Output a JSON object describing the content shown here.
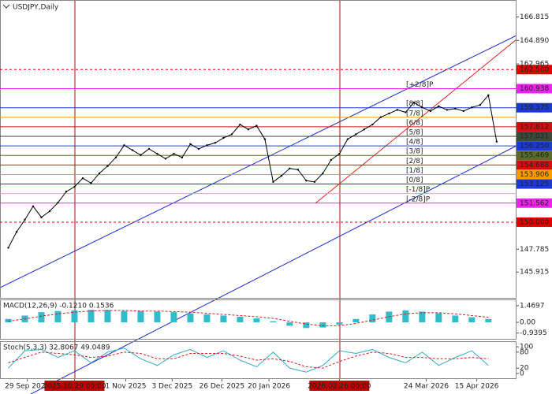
{
  "chart_data": [
    {
      "type": "line",
      "title": "USDJPY,Daily",
      "color": "#000000",
      "x": [
        1,
        2,
        3,
        4,
        5,
        6,
        7,
        8,
        9,
        10,
        11,
        12,
        13,
        14,
        15,
        16,
        17,
        18,
        19,
        20,
        21,
        22,
        23,
        24,
        25,
        26,
        27,
        28,
        29,
        30,
        31,
        32,
        33,
        34,
        35,
        36,
        37,
        38,
        39,
        40,
        41,
        42,
        43,
        44,
        45,
        46,
        47,
        48,
        49,
        50,
        51,
        52,
        53,
        54,
        55,
        56,
        57,
        58,
        59,
        60
      ],
      "values": [
        147.9,
        149.2,
        150.2,
        151.3,
        150.4,
        150.9,
        151.6,
        152.5,
        152.9,
        153.6,
        153.2,
        154.0,
        154.6,
        155.3,
        156.3,
        155.9,
        155.5,
        156.0,
        155.6,
        155.2,
        155.6,
        155.3,
        156.4,
        156.0,
        156.3,
        156.5,
        156.9,
        157.2,
        158.0,
        157.6,
        157.9,
        156.8,
        153.3,
        153.8,
        154.4,
        154.3,
        153.4,
        153.3,
        154.0,
        155.1,
        155.6,
        156.8,
        157.2,
        157.6,
        158.0,
        158.6,
        158.9,
        159.2,
        159.0,
        159.8,
        159.4,
        159.1,
        159.5,
        159.2,
        159.3,
        159.1,
        159.4,
        159.6,
        160.4,
        156.6
      ],
      "xlim": [
        0,
        62.4
      ],
      "ylim": [
        143.8,
        168.2
      ],
      "yticks": [
        166.815,
        {
          "value": 164.89,
          "label": "164.890"
        },
        162.965,
        147.785,
        145.915
      ],
      "levels": [
        {
          "value": 162.5,
          "label": "162.500",
          "color": "#e00000",
          "dashed": true
        },
        {
          "value": 160.938,
          "label": "160.938",
          "murrey": "[+2/8]P",
          "color": "#ee22ee"
        },
        {
          "value": 159.375,
          "label": "159.375",
          "murrey": "[8/8]",
          "color": "#1a3ad0"
        },
        {
          "value": 158.594,
          "murrey": "[7/8]",
          "color": "#ff9900"
        },
        {
          "value": 157.812,
          "label": "157.812",
          "murrey": "[6/8]",
          "color": "#d01010"
        },
        {
          "value": 157.031,
          "label": "157.031",
          "murrey": "[5/8]",
          "color": "#3c4a3c"
        },
        {
          "value": 156.25,
          "label": "156.250",
          "murrey": "[4/8]",
          "color": "#1a3ad0"
        },
        {
          "value": 155.469,
          "label": "155.469",
          "murrey": "[3/8]",
          "color": "#5a6b2a"
        },
        {
          "value": 154.688,
          "label": "154.688",
          "murrey": "[2/8]",
          "color": "#d01010"
        },
        {
          "value": 153.906,
          "label": "153.906",
          "murrey": "[1/8]",
          "color": "#ff9900"
        },
        {
          "value": 153.125,
          "label": "153.125",
          "murrey": "[0/8]",
          "color": "#1a3ad0"
        },
        {
          "value": 152.344,
          "murrey": "[-1/8]P",
          "color": "#f0a0c0"
        },
        {
          "value": 151.562,
          "label": "151.562",
          "murrey": "[-2/8]P",
          "color": "#ee22ee"
        },
        {
          "value": 150,
          "label": "150.000",
          "color": "#e00000",
          "dashed": true
        }
      ],
      "xticks": [
        {
          "value": 3.3,
          "label": "29 Sep 2025"
        },
        {
          "value": 9,
          "label": "2025.10.29 00:00",
          "highlight": true
        },
        {
          "value": 15.2,
          "label": "1 Nov 2025"
        },
        {
          "value": 20.8,
          "label": "3 Dec 2025"
        },
        {
          "value": 26.8,
          "label": "26 Dec 2025"
        },
        {
          "value": 32.5,
          "label": "20 Jan 2026"
        },
        {
          "value": 41,
          "label": "2026.02.26 00:00",
          "highlight": true
        },
        {
          "value": 51.5,
          "label": "24 Mar 2026"
        },
        {
          "value": 57.6,
          "label": "15 Apr 2026"
        }
      ]
    },
    {
      "type": "macd",
      "title": "MACD(12,26,9) -0.1210 0.1536",
      "color": "#33bbcc",
      "signal_color": "#d02020",
      "x": [
        1,
        3,
        5,
        7,
        9,
        11,
        13,
        15,
        17,
        19,
        21,
        23,
        25,
        27,
        29,
        31,
        33,
        35,
        37,
        39,
        41,
        43,
        45,
        47,
        49,
        51,
        53,
        55,
        57,
        59
      ],
      "values": [
        0.3,
        0.6,
        0.9,
        1.0,
        1.05,
        1.1,
        1.1,
        1.0,
        1.0,
        0.95,
        0.9,
        0.8,
        0.7,
        0.6,
        0.5,
        0.35,
        0.1,
        -0.3,
        -0.5,
        -0.45,
        -0.2,
        0.3,
        0.7,
        0.95,
        1.05,
        0.95,
        0.8,
        0.6,
        0.45,
        0.3
      ],
      "signal": [
        0.1,
        0.3,
        0.55,
        0.75,
        0.9,
        1.0,
        1.05,
        1.05,
        1.0,
        1.0,
        0.95,
        0.9,
        0.8,
        0.7,
        0.6,
        0.5,
        0.35,
        0.1,
        -0.15,
        -0.3,
        -0.3,
        -0.1,
        0.2,
        0.5,
        0.75,
        0.85,
        0.85,
        0.75,
        0.6,
        0.45
      ],
      "ylim": [
        -1.45,
        1.95
      ],
      "yticks": [
        1.4697,
        {
          "value": 0,
          "label": "0.00"
        },
        -0.9395
      ]
    },
    {
      "type": "stoch",
      "title": "Stoch(5,3,3) 32.8067 49.0489",
      "color": "#33aacc",
      "signal_color": "#d02020",
      "x": [
        1,
        3,
        5,
        7,
        9,
        11,
        13,
        15,
        17,
        19,
        21,
        23,
        25,
        27,
        29,
        31,
        33,
        35,
        37,
        39,
        41,
        43,
        45,
        47,
        49,
        51,
        53,
        55,
        57,
        59
      ],
      "values": [
        20,
        85,
        90,
        60,
        85,
        40,
        80,
        95,
        55,
        30,
        70,
        90,
        60,
        85,
        50,
        25,
        80,
        20,
        5,
        30,
        85,
        75,
        90,
        60,
        40,
        80,
        30,
        60,
        85,
        30
      ],
      "signal": [
        40,
        60,
        80,
        75,
        70,
        60,
        65,
        80,
        75,
        55,
        55,
        75,
        75,
        75,
        65,
        50,
        55,
        45,
        25,
        20,
        45,
        65,
        80,
        75,
        60,
        60,
        55,
        55,
        60,
        55
      ],
      "ylim": [
        -12,
        112
      ],
      "yticks": [
        100,
        80,
        20,
        0
      ]
    }
  ]
}
